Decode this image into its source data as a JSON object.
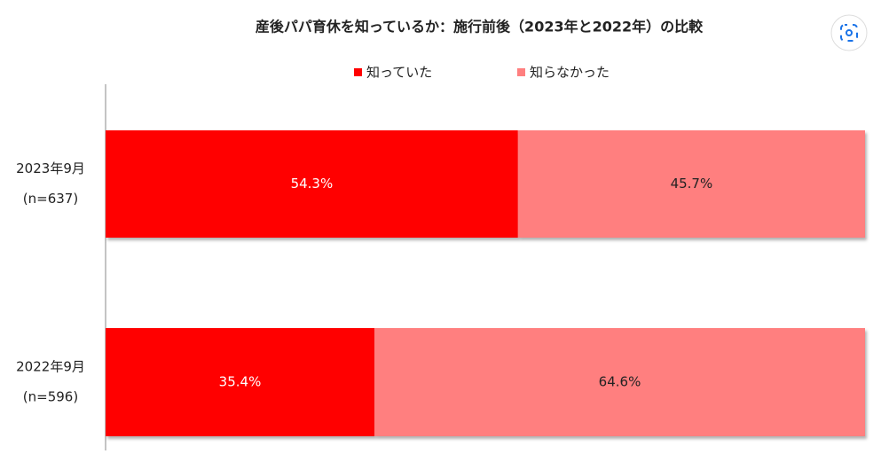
{
  "chart_data": {
    "type": "stacked_bar_horizontal",
    "title": "産後パパ育休を知っているか：施行前後（2023年と2022年）の比較",
    "categories": [
      [
        "2023年9月",
        "(n=637)"
      ],
      [
        "2022年9月",
        "(n=596)"
      ]
    ],
    "series": [
      {
        "name": "知っていた",
        "color": "#ff0000",
        "values": [
          54.3,
          35.4
        ],
        "value_labels": [
          "54.3%",
          "35.4%"
        ],
        "label_color": "#ffffff"
      },
      {
        "name": "知らなかった",
        "color": "#ff7f7f",
        "values": [
          45.7,
          64.6
        ],
        "value_labels": [
          "45.7%",
          "64.6%"
        ],
        "label_color": "#222222"
      }
    ],
    "xlim": [
      0,
      100
    ]
  }
}
